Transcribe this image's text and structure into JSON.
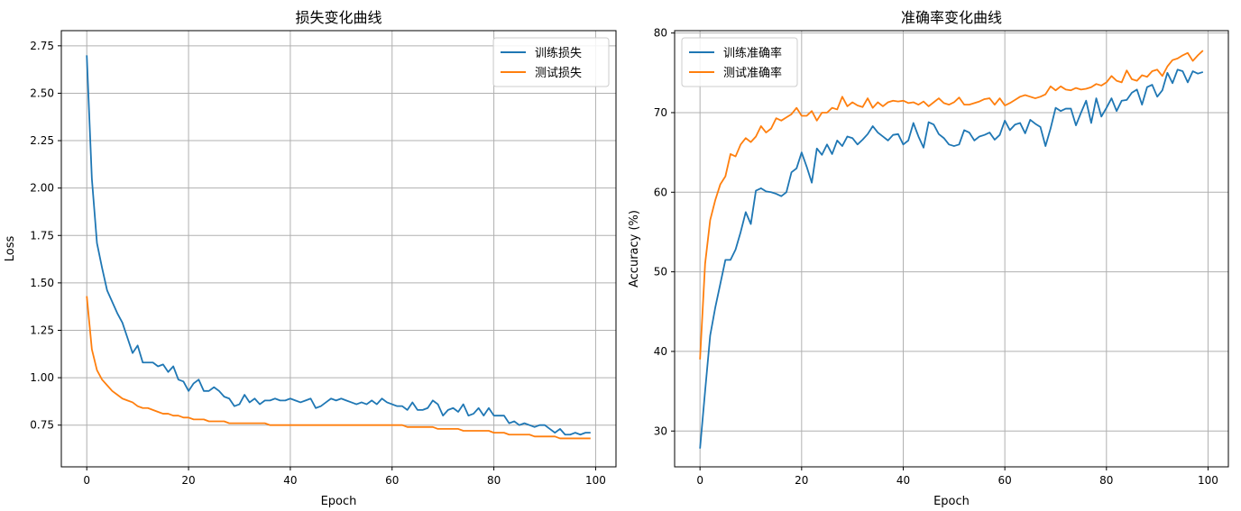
{
  "colors": {
    "train": "#1f77b4",
    "test": "#ff7f0e",
    "grid": "#b0b0b0"
  },
  "chart_data": [
    {
      "type": "line",
      "title": "损失变化曲线",
      "xlabel": "Epoch",
      "ylabel": "Loss",
      "xlim": [
        -5,
        104
      ],
      "ylim": [
        0.53,
        2.83
      ],
      "xticks": [
        0,
        20,
        40,
        60,
        80,
        100
      ],
      "yticks": [
        0.75,
        1.0,
        1.25,
        1.5,
        1.75,
        2.0,
        2.25,
        2.5,
        2.75
      ],
      "ytick_labels": [
        "0.75",
        "1.00",
        "1.25",
        "1.50",
        "1.75",
        "2.00",
        "2.25",
        "2.50",
        "2.75"
      ],
      "grid": true,
      "legend_position": "top-right",
      "series": [
        {
          "name": "训练损失",
          "color": "#1f77b4",
          "values": [
            2.7,
            2.05,
            1.71,
            1.58,
            1.46,
            1.4,
            1.34,
            1.29,
            1.21,
            1.13,
            1.17,
            1.08,
            1.08,
            1.08,
            1.06,
            1.07,
            1.03,
            1.06,
            0.99,
            0.98,
            0.93,
            0.97,
            0.99,
            0.93,
            0.93,
            0.95,
            0.93,
            0.9,
            0.89,
            0.85,
            0.86,
            0.91,
            0.87,
            0.89,
            0.86,
            0.88,
            0.88,
            0.89,
            0.88,
            0.88,
            0.89,
            0.88,
            0.87,
            0.88,
            0.89,
            0.84,
            0.85,
            0.87,
            0.89,
            0.88,
            0.89,
            0.88,
            0.87,
            0.86,
            0.87,
            0.86,
            0.88,
            0.86,
            0.89,
            0.87,
            0.86,
            0.85,
            0.85,
            0.83,
            0.87,
            0.83,
            0.83,
            0.84,
            0.88,
            0.86,
            0.8,
            0.83,
            0.84,
            0.82,
            0.86,
            0.8,
            0.81,
            0.84,
            0.8,
            0.84,
            0.8,
            0.8,
            0.8,
            0.76,
            0.77,
            0.75,
            0.76,
            0.75,
            0.74,
            0.75,
            0.75,
            0.73,
            0.71,
            0.73,
            0.7,
            0.7,
            0.71,
            0.7,
            0.71,
            0.71
          ]
        },
        {
          "name": "测试损失",
          "color": "#ff7f0e",
          "values": [
            1.43,
            1.15,
            1.04,
            0.99,
            0.96,
            0.93,
            0.91,
            0.89,
            0.88,
            0.87,
            0.85,
            0.84,
            0.84,
            0.83,
            0.82,
            0.81,
            0.81,
            0.8,
            0.8,
            0.79,
            0.79,
            0.78,
            0.78,
            0.78,
            0.77,
            0.77,
            0.77,
            0.77,
            0.76,
            0.76,
            0.76,
            0.76,
            0.76,
            0.76,
            0.76,
            0.76,
            0.75,
            0.75,
            0.75,
            0.75,
            0.75,
            0.75,
            0.75,
            0.75,
            0.75,
            0.75,
            0.75,
            0.75,
            0.75,
            0.75,
            0.75,
            0.75,
            0.75,
            0.75,
            0.75,
            0.75,
            0.75,
            0.75,
            0.75,
            0.75,
            0.75,
            0.75,
            0.75,
            0.74,
            0.74,
            0.74,
            0.74,
            0.74,
            0.74,
            0.73,
            0.73,
            0.73,
            0.73,
            0.73,
            0.72,
            0.72,
            0.72,
            0.72,
            0.72,
            0.72,
            0.71,
            0.71,
            0.71,
            0.7,
            0.7,
            0.7,
            0.7,
            0.7,
            0.69,
            0.69,
            0.69,
            0.69,
            0.69,
            0.68,
            0.68,
            0.68,
            0.68,
            0.68,
            0.68,
            0.68
          ]
        }
      ]
    },
    {
      "type": "line",
      "title": "准确率变化曲线",
      "xlabel": "Epoch",
      "ylabel": "Accuracy (%)",
      "xlim": [
        -5,
        104
      ],
      "ylim": [
        25.5,
        80.3
      ],
      "xticks": [
        0,
        20,
        40,
        60,
        80,
        100
      ],
      "yticks": [
        30,
        40,
        50,
        60,
        70,
        80
      ],
      "ytick_labels": [
        "30",
        "40",
        "50",
        "60",
        "70",
        "80"
      ],
      "grid": true,
      "legend_position": "top-left",
      "series": [
        {
          "name": "训练准确率",
          "color": "#1f77b4",
          "values": [
            27.8,
            35.0,
            42.0,
            45.5,
            48.5,
            51.5,
            51.5,
            52.8,
            55.0,
            57.5,
            56.0,
            60.2,
            60.5,
            60.1,
            60.0,
            59.8,
            59.5,
            60.0,
            62.5,
            63.0,
            65.0,
            63.2,
            61.2,
            65.5,
            64.7,
            66.0,
            64.8,
            66.5,
            65.8,
            67.0,
            66.8,
            66.0,
            66.6,
            67.3,
            68.3,
            67.5,
            67.0,
            66.5,
            67.2,
            67.3,
            66.0,
            66.5,
            68.7,
            67.0,
            65.6,
            68.8,
            68.5,
            67.3,
            66.8,
            66.0,
            65.8,
            66.0,
            67.8,
            67.5,
            66.5,
            67.0,
            67.2,
            67.5,
            66.6,
            67.2,
            69.0,
            67.8,
            68.5,
            68.7,
            67.4,
            69.1,
            68.6,
            68.2,
            65.8,
            68.0,
            70.6,
            70.2,
            70.5,
            70.5,
            68.4,
            70.0,
            71.5,
            68.7,
            71.8,
            69.5,
            70.6,
            71.8,
            70.2,
            71.5,
            71.6,
            72.5,
            72.9,
            71.0,
            73.2,
            73.5,
            72.0,
            72.8,
            75.0,
            73.7,
            75.4,
            75.2,
            73.8,
            75.2,
            74.9,
            75.1
          ]
        },
        {
          "name": "测试准确率",
          "color": "#ff7f0e",
          "values": [
            39.0,
            51.0,
            56.5,
            59.0,
            61.0,
            62.0,
            64.8,
            64.5,
            66.0,
            66.8,
            66.3,
            67.0,
            68.3,
            67.5,
            68.0,
            69.3,
            69.0,
            69.4,
            69.8,
            70.6,
            69.6,
            69.6,
            70.2,
            69.0,
            70.0,
            70.0,
            70.6,
            70.4,
            72.0,
            70.8,
            71.3,
            70.9,
            70.7,
            71.8,
            70.6,
            71.3,
            70.8,
            71.3,
            71.5,
            71.4,
            71.5,
            71.2,
            71.3,
            71.0,
            71.4,
            70.8,
            71.3,
            71.8,
            71.2,
            71.0,
            71.3,
            71.9,
            71.0,
            71.0,
            71.2,
            71.4,
            71.7,
            71.8,
            71.0,
            71.8,
            70.9,
            71.2,
            71.6,
            72.0,
            72.2,
            72.0,
            71.8,
            72.0,
            72.3,
            73.3,
            72.8,
            73.3,
            72.9,
            72.8,
            73.1,
            72.9,
            73.0,
            73.2,
            73.6,
            73.4,
            73.8,
            74.6,
            74.0,
            73.8,
            75.3,
            74.2,
            74.0,
            74.7,
            74.5,
            75.2,
            75.4,
            74.6,
            75.8,
            76.6,
            76.8,
            77.2,
            77.5,
            76.5,
            77.2,
            77.8
          ]
        }
      ]
    }
  ]
}
